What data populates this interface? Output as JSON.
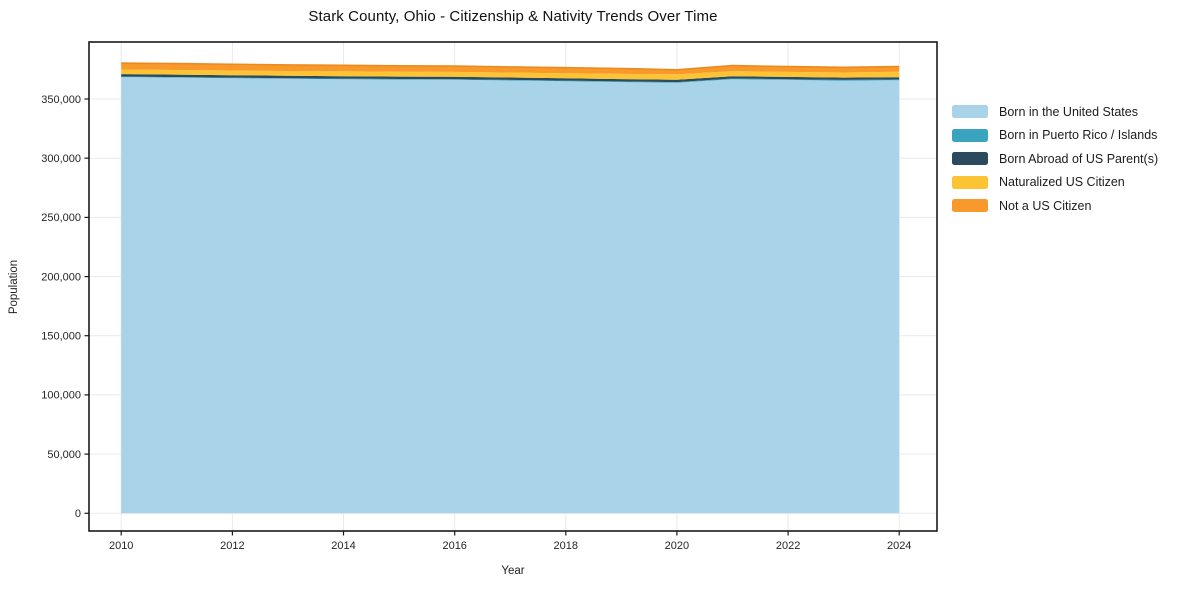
{
  "chart_data": {
    "type": "area",
    "stacked": true,
    "title": "Stark County, Ohio - Citizenship & Nativity Trends Over Time",
    "xlabel": "Year",
    "ylabel": "Population",
    "grid": true,
    "legend_position": "right-outside",
    "x": [
      2010,
      2011,
      2012,
      2013,
      2014,
      2015,
      2016,
      2017,
      2018,
      2019,
      2020,
      2021,
      2022,
      2023,
      2024
    ],
    "series": [
      {
        "name": "Born in the United States",
        "color": "#a8d3e8",
        "edge": null,
        "values": [
          368500,
          368100,
          367600,
          367100,
          366700,
          366400,
          366200,
          365600,
          365000,
          364300,
          363700,
          366700,
          366100,
          365500,
          365900
        ]
      },
      {
        "name": "Born in Puerto Rico / Islands",
        "color": "#3aa4bf",
        "edge": null,
        "values": [
          400,
          420,
          450,
          470,
          500,
          500,
          520,
          550,
          570,
          600,
          600,
          650,
          650,
          680,
          700
        ]
      },
      {
        "name": "Born Abroad of US Parent(s)",
        "color": "#2b4a5e",
        "edge": null,
        "values": [
          2100,
          2100,
          2100,
          2100,
          2100,
          2050,
          2000,
          2000,
          2000,
          1950,
          1900,
          1950,
          1900,
          1900,
          1850
        ]
      },
      {
        "name": "Naturalized US Citizen",
        "color": "#fcc334",
        "edge": null,
        "values": [
          3900,
          3900,
          3950,
          4000,
          4100,
          4150,
          4200,
          4200,
          4250,
          4400,
          4600,
          4300,
          4250,
          4300,
          4550
        ]
      },
      {
        "name": "Not a US Citizen",
        "color": "#f89a2b",
        "edge": "#ee8a1d",
        "values": [
          5400,
          5350,
          5250,
          5150,
          5050,
          4950,
          4850,
          4750,
          4650,
          4550,
          3900,
          4650,
          4450,
          4400,
          4400
        ]
      }
    ],
    "x_ticks": [
      {
        "v": 2010,
        "label": "2010"
      },
      {
        "v": 2012,
        "label": "2012"
      },
      {
        "v": 2014,
        "label": "2014"
      },
      {
        "v": 2016,
        "label": "2016"
      },
      {
        "v": 2018,
        "label": "2018"
      },
      {
        "v": 2020,
        "label": "2020"
      },
      {
        "v": 2022,
        "label": "2022"
      },
      {
        "v": 2024,
        "label": "2024"
      }
    ],
    "y_ticks": [
      {
        "v": 0,
        "label": "0"
      },
      {
        "v": 50000,
        "label": "50,000"
      },
      {
        "v": 100000,
        "label": "100,000"
      },
      {
        "v": 150000,
        "label": "150,000"
      },
      {
        "v": 200000,
        "label": "200,000"
      },
      {
        "v": 250000,
        "label": "250,000"
      },
      {
        "v": 300000,
        "label": "300,000"
      },
      {
        "v": 350000,
        "label": "350,000"
      }
    ],
    "xlim": [
      2009.42,
      2024.68
    ],
    "ylim": [
      -14950,
      398160
    ],
    "colors": {
      "grid": "#eaeaea",
      "spine": "#1a1a1a",
      "tick": "#1a1a1a",
      "tick_label": "#262626",
      "background": "#ffffff"
    }
  }
}
